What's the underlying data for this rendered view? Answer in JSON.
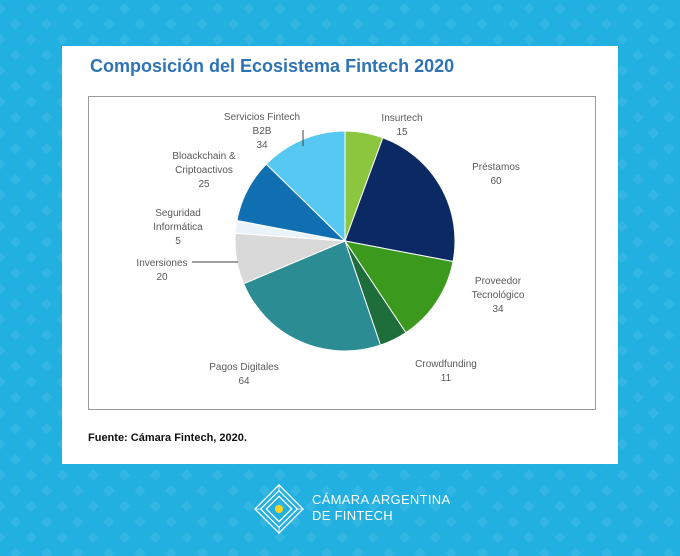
{
  "chart_data": {
    "type": "pie",
    "title": "Composición del Ecosistema Fintech 2020",
    "slices": [
      {
        "name": "Insurtech",
        "value": 15,
        "color": "#8cc63f",
        "label_lines": [
          "Insurtech",
          "15"
        ]
      },
      {
        "name": "Préstamos",
        "value": 60,
        "color": "#0b2a63",
        "label_lines": [
          "Préstamos",
          "60"
        ]
      },
      {
        "name": "Proveedor Tecnológico",
        "value": 34,
        "color": "#3b9a1e",
        "label_lines": [
          "Proveedor",
          "Tecnológico",
          "34"
        ]
      },
      {
        "name": "Crowdfunding",
        "value": 11,
        "color": "#1e6e3c",
        "label_lines": [
          "Crowdfunding",
          "11"
        ]
      },
      {
        "name": "Pagos Digitales",
        "value": 64,
        "color": "#2b8c93",
        "label_lines": [
          "Pagos Digitales",
          "64"
        ]
      },
      {
        "name": "Inversiones",
        "value": 20,
        "color": "#d9d9d9",
        "label_lines": [
          "Inversiones",
          "20"
        ]
      },
      {
        "name": "Seguridad Informática",
        "value": 5,
        "color": "#eaf4f8",
        "label_lines": [
          "Seguridad",
          "Informática",
          "5"
        ]
      },
      {
        "name": "Bloackchain & Criptoactivos",
        "value": 25,
        "color": "#0f6fb0",
        "label_lines": [
          "Bloackchain &",
          "Criptoactivos",
          "25"
        ]
      },
      {
        "name": "Servicios Fintech B2B",
        "value": 34,
        "color": "#56c8f2",
        "label_lines": [
          "Servicios Fintech",
          "B2B",
          "34"
        ]
      }
    ],
    "legend": "none"
  },
  "source": "Fuente: Cámara Fintech, 2020.",
  "brand": {
    "line1": "CÁMARA ARGENTINA",
    "line2": "DE FINTECH"
  }
}
